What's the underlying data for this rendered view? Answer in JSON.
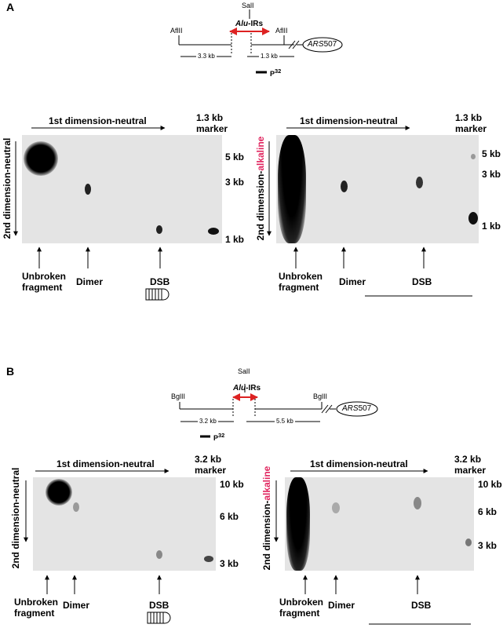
{
  "panels": [
    {
      "label": "A",
      "map": {
        "site_top": "SalI",
        "alu": "Alu",
        "irs": "-IRs",
        "left_site": "AflII",
        "right_site": "AflII",
        "ars": "ARS",
        "ars_num": "507",
        "left_length": "3.3 kb",
        "right_length": "1.3 kb",
        "probe": "P",
        "probe_sup": "32"
      },
      "blots": [
        {
          "x_label": "1st dimension-neutral",
          "marker": "1.3 kb marker",
          "y_label_prefix": "2nd dimension-",
          "y_label_suffix": "neutral",
          "suffix_color": "#000000",
          "sizes": [
            "5 kb",
            "3 kb",
            "1 kb"
          ],
          "bottom_labels": [
            "Unbroken fragment",
            "Dimer",
            "DSB"
          ]
        },
        {
          "x_label": "1st dimension-neutral",
          "marker": "1.3 kb marker",
          "y_label_prefix": "2nd dimension-",
          "y_label_suffix": "alkaline",
          "suffix_color": "#e0245e",
          "sizes": [
            "5 kb",
            "3 kb",
            "1 kb"
          ],
          "bottom_labels": [
            "Unbroken fragment",
            "Dimer",
            "DSB"
          ]
        }
      ]
    },
    {
      "label": "B",
      "map": {
        "site_top": "SalI",
        "alu": "Alu",
        "irs": "-IRs",
        "left_site": "BglII",
        "right_site": "BglII",
        "ars": "ARS",
        "ars_num": "507",
        "left_length": "3.2 kb",
        "right_length": "5.5 kb",
        "probe": "P",
        "probe_sup": "32"
      },
      "blots": [
        {
          "x_label": "1st dimension-neutral",
          "marker": "3.2 kb marker",
          "y_label_prefix": "2nd dimension-",
          "y_label_suffix": "neutral",
          "suffix_color": "#000000",
          "sizes": [
            "10 kb",
            "6 kb",
            "3 kb"
          ],
          "bottom_labels": [
            "Unbroken fragment",
            "Dimer",
            "DSB"
          ]
        },
        {
          "x_label": "1st dimension-neutral",
          "marker": "3.2 kb marker",
          "y_label_prefix": "2nd dimension-",
          "y_label_suffix": "alkaline",
          "suffix_color": "#e0245e",
          "sizes": [
            "10 kb",
            "6 kb",
            "3 kb"
          ],
          "bottom_labels": [
            "Unbroken fragment",
            "Dimer",
            "DSB"
          ]
        }
      ]
    }
  ]
}
